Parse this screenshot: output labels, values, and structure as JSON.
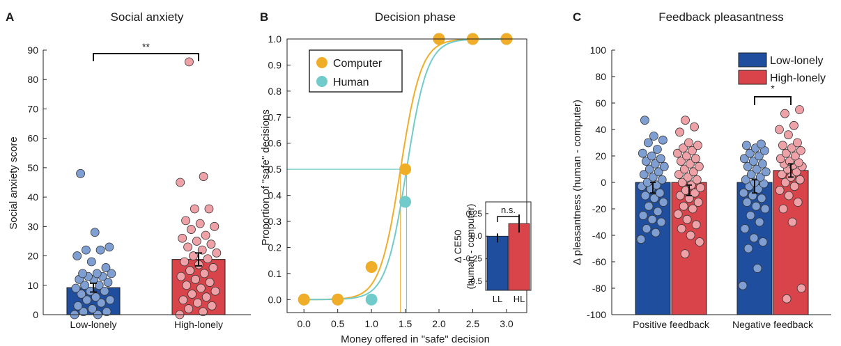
{
  "chart_data": [
    {
      "panel_letter": "A",
      "type": "bar",
      "title": "Social anxiety",
      "ylabel": "Social anxiety score",
      "xlabel": "",
      "ylim": [
        0,
        90
      ],
      "yticks": [
        0,
        10,
        20,
        30,
        40,
        50,
        60,
        70,
        80,
        90
      ],
      "categories": [
        "Low-lonely",
        "High-lonely"
      ],
      "values": [
        9.2,
        18.8
      ],
      "errors": [
        1.5,
        2.2
      ],
      "colors": [
        "#1f4e9e",
        "#d9444a"
      ],
      "point_colors": [
        "#7f9fd3",
        "#eea1a6"
      ],
      "significance": "**",
      "points": [
        [
          0,
          0,
          1,
          1,
          2,
          3,
          4,
          5,
          5,
          6,
          7,
          8,
          8,
          9,
          10,
          10,
          11,
          12,
          12,
          13,
          13,
          14,
          14,
          14,
          16,
          18,
          20,
          22,
          22,
          23,
          28,
          48
        ],
        [
          0,
          1,
          2,
          3,
          4,
          5,
          6,
          7,
          8,
          9,
          10,
          11,
          12,
          13,
          14,
          15,
          16,
          17,
          18,
          19,
          20,
          21,
          22,
          23,
          24,
          25,
          26,
          27,
          29,
          30,
          31,
          32,
          36,
          36,
          45,
          47,
          86
        ]
      ]
    },
    {
      "panel_letter": "B",
      "type": "line",
      "title": "Decision phase",
      "xlabel": "Money offered in \"safe\" decision",
      "ylabel": "Proportion of \"safe\" decisions",
      "xlim": [
        -0.25,
        3.3
      ],
      "ylim": [
        -0.05,
        1.0
      ],
      "xticks": [
        0.0,
        0.5,
        1.0,
        1.5,
        2.0,
        2.5,
        3.0
      ],
      "xtick_labels": [
        "0.0",
        "0.5",
        "1.0",
        "1.5",
        "2.0",
        "2.5",
        "3.0"
      ],
      "yticks": [
        0,
        0.1,
        0.2,
        0.3,
        0.4,
        0.5,
        0.6,
        0.7,
        0.8,
        0.9,
        1.0
      ],
      "ytick_labels": [
        "0.0",
        "0.1",
        "0.2",
        "0.3",
        "0.4",
        "0.5",
        "0.6",
        "0.7",
        "0.8",
        "0.9",
        "1.0"
      ],
      "legend_position": "top-left",
      "series": [
        {
          "name": "Computer",
          "color": "#f0ad28",
          "x": [
            0.0,
            0.5,
            1.0,
            1.5,
            2.0,
            2.5,
            3.0
          ],
          "y": [
            0.0,
            0.0,
            0.125,
            0.5,
            1.0,
            1.0,
            1.0
          ],
          "ce50": 1.43,
          "slope": 6.5
        },
        {
          "name": "Human",
          "color": "#72cbcb",
          "x": [
            0.0,
            0.5,
            1.0,
            1.5,
            2.0,
            2.5,
            3.0
          ],
          "y": [
            0.0,
            0.0,
            0.0,
            0.375,
            1.0,
            1.0,
            1.0
          ],
          "ce50": 1.52,
          "slope": 6.5
        }
      ],
      "reference_line_y": 0.5,
      "inset": {
        "type": "bar",
        "ylabel": "Δ CE50",
        "ylabel2": "(human - computer)",
        "categories": [
          "LL",
          "HL"
        ],
        "values": [
          -0.02,
          0.14
        ],
        "errors": [
          0.05,
          0.1
        ],
        "colors": [
          "#1f4e9e",
          "#d9444a"
        ],
        "ylim": [
          -0.6,
          0.38
        ],
        "yticks": [
          -0.5,
          -0.25,
          0.0,
          0.25
        ],
        "ytick_labels": [
          "-0.5",
          "-0.25",
          "0.0",
          "0.25"
        ],
        "significance": "n.s."
      }
    },
    {
      "panel_letter": "C",
      "type": "bar",
      "title": "Feedback pleasantness",
      "ylabel": "Δ pleasantness (human - computer)",
      "xlabel": "",
      "ylim": [
        -100,
        100
      ],
      "yticks": [
        -100,
        -80,
        -60,
        -40,
        -20,
        0,
        20,
        40,
        60,
        80,
        100
      ],
      "categories": [
        "Positive feedback",
        "Negative feedback"
      ],
      "legend_position": "top-right",
      "series": [
        {
          "name": "Low-lonely",
          "color": "#1f4e9e",
          "point_color": "#7f9fd3",
          "values": [
            -4,
            -3
          ],
          "errors": [
            4,
            5
          ],
          "points": [
            [
              -43,
              -38,
              -35,
              -30,
              -28,
              -25,
              -22,
              -18,
              -15,
              -12,
              -10,
              -8,
              -5,
              -3,
              -2,
              0,
              2,
              4,
              6,
              8,
              10,
              12,
              14,
              16,
              18,
              20,
              22,
              25,
              30,
              32,
              35,
              47
            ],
            [
              -78,
              -65,
              -50,
              -45,
              -42,
              -35,
              -30,
              -25,
              -20,
              -18,
              -15,
              -12,
              -10,
              -8,
              -5,
              -3,
              -1,
              0,
              2,
              4,
              6,
              8,
              10,
              12,
              14,
              16,
              18,
              20,
              22,
              24,
              26,
              28,
              29
            ]
          ]
        },
        {
          "name": "High-lonely",
          "color": "#d9444a",
          "point_color": "#eea1a6",
          "values": [
            -6,
            9
          ],
          "errors": [
            4,
            5
          ],
          "points": [
            [
              -54,
              -45,
              -40,
              -35,
              -32,
              -28,
              -24,
              -20,
              -18,
              -15,
              -12,
              -10,
              -8,
              -6,
              -4,
              -2,
              0,
              2,
              4,
              6,
              8,
              10,
              12,
              14,
              16,
              18,
              20,
              22,
              24,
              26,
              28,
              30,
              38,
              42,
              47
            ],
            [
              -88,
              -80,
              -30,
              -20,
              -15,
              -10,
              -6,
              -3,
              0,
              2,
              4,
              6,
              8,
              10,
              12,
              13,
              14,
              15,
              16,
              18,
              20,
              22,
              24,
              26,
              28,
              30,
              36,
              40,
              43,
              52,
              55
            ]
          ]
        }
      ],
      "significance": "*"
    }
  ]
}
